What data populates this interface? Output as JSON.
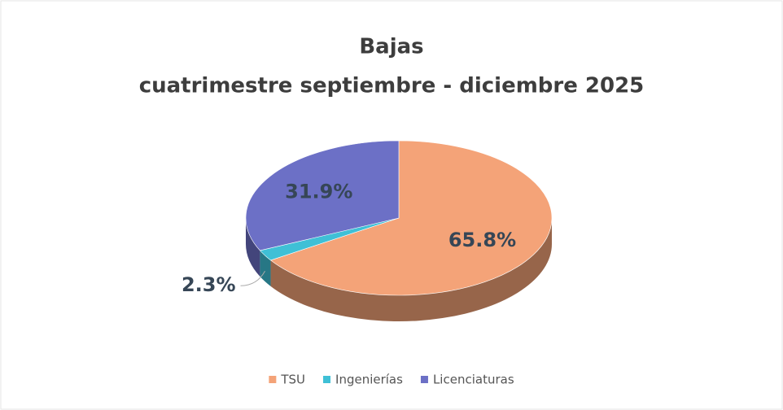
{
  "chart_data": {
    "type": "pie",
    "title": "Bajas",
    "subtitle": "cuatrimestre septiembre - diciembre 2025",
    "categories": [
      "TSU",
      "Ingenierías",
      "Licenciaturas"
    ],
    "values": [
      65.8,
      2.3,
      31.9
    ],
    "value_labels": [
      "65.8%",
      "2.3%",
      "31.9%"
    ],
    "colors": [
      "#f4a378",
      "#3fc0d6",
      "#6c70c6"
    ],
    "legend": "bottom"
  }
}
